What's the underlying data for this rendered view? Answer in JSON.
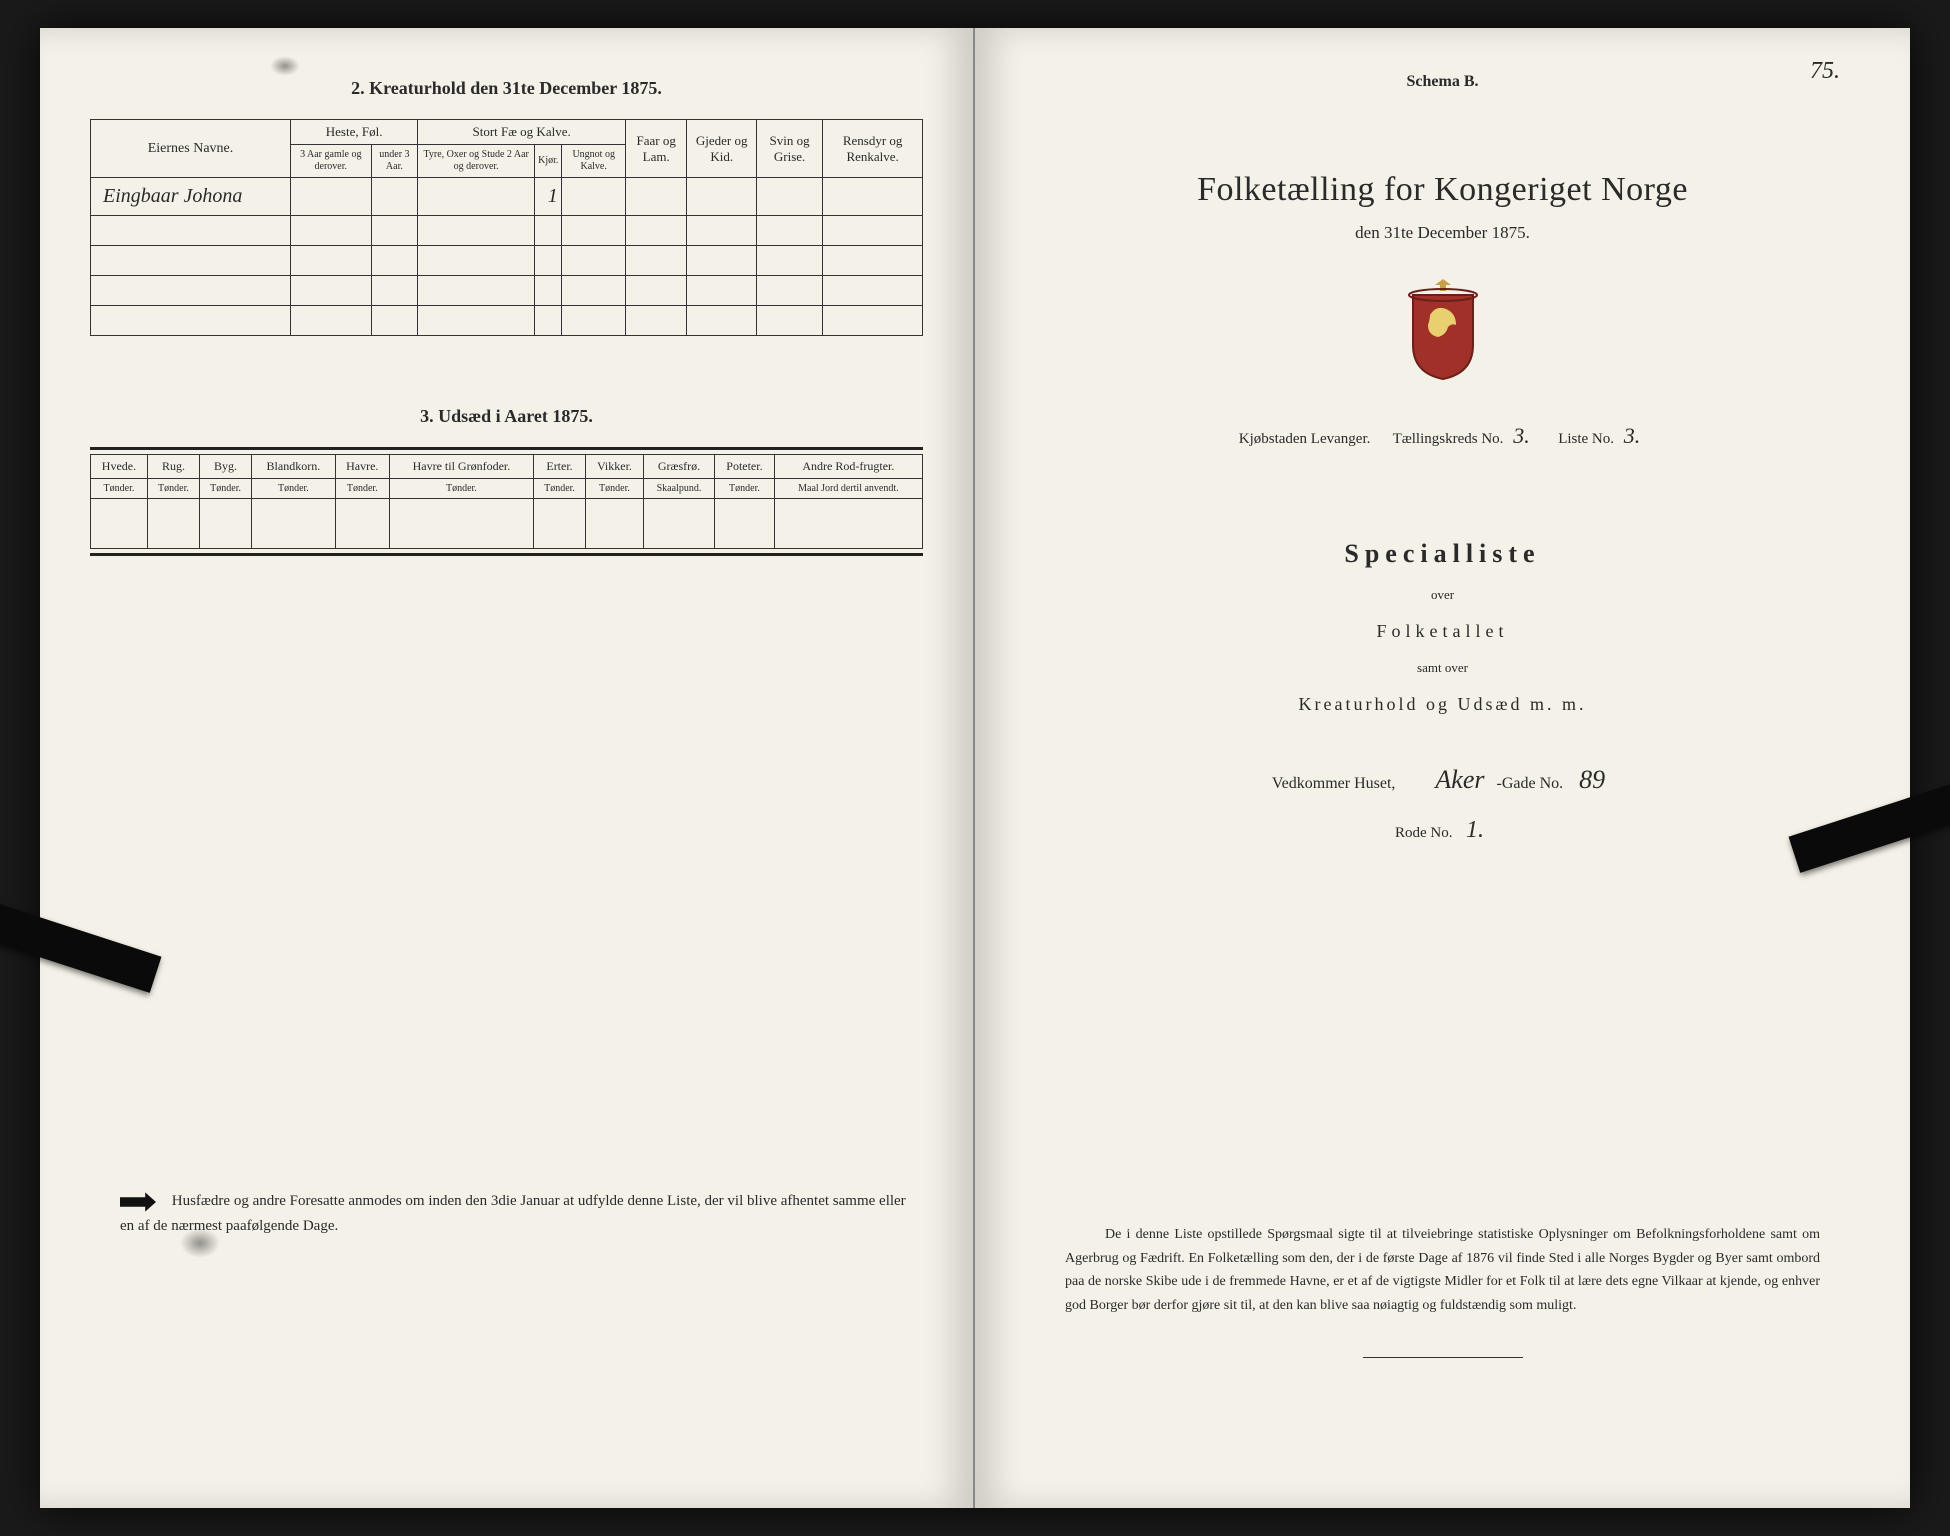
{
  "left_page": {
    "section2_title": "2.  Kreaturhold den 31te December 1875.",
    "table2": {
      "owner_header": "Eiernes Navne.",
      "groups": [
        {
          "label": "Heste, Føl.",
          "subs": [
            "3 Aar gamle og derover.",
            "under 3 Aar."
          ]
        },
        {
          "label": "Stort Fæ og Kalve.",
          "subs": [
            "Tyre, Oxer og Stude 2 Aar og derover.",
            "Kjør.",
            "Ungnot og Kalve."
          ]
        },
        {
          "label": "Faar og Lam.",
          "subs": []
        },
        {
          "label": "Gjeder og Kid.",
          "subs": []
        },
        {
          "label": "Svin og Grise.",
          "subs": []
        },
        {
          "label": "Rensdyr og Renkalve.",
          "subs": []
        }
      ],
      "row": {
        "owner": "Eingbaar Johona",
        "values": [
          "",
          "",
          "",
          "1",
          "",
          "",
          "",
          "",
          ""
        ]
      }
    },
    "section3_title": "3.  Udsæd i Aaret 1875.",
    "table3": {
      "cols": [
        {
          "h": "Hvede.",
          "s": "Tønder."
        },
        {
          "h": "Rug.",
          "s": "Tønder."
        },
        {
          "h": "Byg.",
          "s": "Tønder."
        },
        {
          "h": "Blandkorn.",
          "s": "Tønder."
        },
        {
          "h": "Havre.",
          "s": "Tønder."
        },
        {
          "h": "Havre til Grønfoder.",
          "s": "Tønder."
        },
        {
          "h": "Erter.",
          "s": "Tønder."
        },
        {
          "h": "Vikker.",
          "s": "Tønder."
        },
        {
          "h": "Græsfrø.",
          "s": "Skaalpund."
        },
        {
          "h": "Poteter.",
          "s": "Tønder."
        },
        {
          "h": "Andre Rod-frugter.",
          "s": "Maal Jord dertil anvendt."
        }
      ]
    },
    "footer_note": "Husfædre og andre Foresatte anmodes om inden den 3die Januar at udfylde denne Liste, der vil blive afhentet samme eller en af de nærmest paafølgende Dage."
  },
  "right_page": {
    "page_number": "75.",
    "schema": "Schema B.",
    "main_title": "Folketælling for Kongeriget Norge",
    "date_line": "den 31te December 1875.",
    "kjobstad_label": "Kjøbstaden Levanger.",
    "taelling_label": "Tællingskreds No.",
    "taelling_value": "3.",
    "liste_label": "Liste No.",
    "liste_value": "3.",
    "specialliste": "Specialliste",
    "over": "over",
    "folketallet": "Folketallet",
    "samt_over": "samt over",
    "kreatur_line": "Kreaturhold og Udsæd m. m.",
    "vedkommer_label": "Vedkommer Huset,",
    "gade_name": "Aker",
    "gade_label": "-Gade No.",
    "gade_no": "89",
    "rode_label": "Rode No.",
    "rode_value": "1.",
    "footer_text": "De i denne Liste opstillede Spørgsmaal sigte til at tilveiebringe statistiske Oplysninger om Befolkningsforholdene samt om Agerbrug og Fædrift.  En Folketælling som den, der i de første Dage af 1876 vil finde Sted i alle Norges Bygder og Byer samt ombord paa de norske Skibe ude i de fremmede Havne, er et af de vigtigste Midler for et Folk til at lære dets egne Vilkaar at kjende, og enhver god Borger bør derfor gjøre sit til, at den kan blive saa nøiagtig og fuldstændig som muligt."
  },
  "colors": {
    "page_bg": "#f4f1e8",
    "ink": "#2a2a2a",
    "outer_bg": "#1a1a1a",
    "crest_red": "#a03028",
    "crest_gold": "#c9a04a"
  }
}
